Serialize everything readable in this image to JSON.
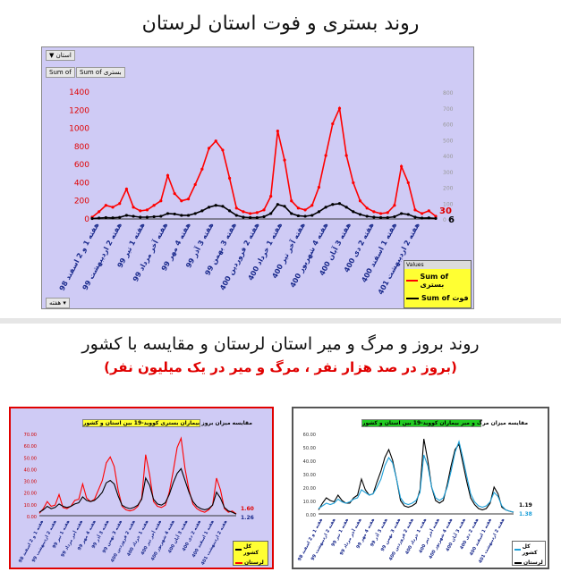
{
  "titles": {
    "main": "روند بستری و فوت استان لرستان",
    "section2": "روند بروز و مرگ و میر استان لرستان و مقایسه با کشور",
    "section2_sub": "(بروز در صد هزار نفر ، مرگ و میر در یک میلیون نفر)"
  },
  "panel1": {
    "filter_label": "استان",
    "buttons": [
      "Sum of",
      "Sum of بستری"
    ],
    "legend_title": "Values",
    "legend_items": [
      "Sum of بستری",
      "Sum of فوت"
    ],
    "bottom_control": "هفته",
    "last_labels": [
      "30",
      "6"
    ]
  },
  "panel2": {
    "title": "مقایسه میزان بروز بیماران بستری کووید-19 بین استان و کشور",
    "legend_items": [
      "کل کشور",
      "لرستان"
    ],
    "last_labels": [
      "1.60",
      "1.26"
    ]
  },
  "panel3": {
    "title": "مقایسه میزان مرگ و میر بیماران کووید-19 بین استان و کشور",
    "legend_items": [
      "کل کشور",
      "لرستان"
    ],
    "last_labels": [
      "1.19",
      "1.38"
    ]
  },
  "chart_data": [
    {
      "type": "line",
      "x_tick_labels": [
        "هفته 1 و 2 اسفند 98",
        "هفته 2 اردیبهشت 99",
        "هفته 1 تیر 99",
        "هفته آخر مرداد 99",
        "هفته 4 مهر 99",
        "هفته 3 آذر 99",
        "هفته 3 بهمن 99",
        "هفته 2 فروردین 400",
        "هفته 1 خرداد 400",
        "هفته آخر تیر 400",
        "هفته 4 شهریور 400",
        "هفته 3 آبان 400",
        "هفته 2 دی 400",
        "هفته 1 اسفند 400",
        "هفته 2 اردیبهشت 401"
      ],
      "ylim": [
        0,
        1400
      ],
      "y2lim": [
        0,
        800
      ],
      "y_ticks": [
        0,
        200,
        400,
        600,
        800,
        1000,
        1200,
        1400
      ],
      "y2_ticks": [
        0,
        100,
        200,
        300,
        400,
        500,
        600,
        700,
        800
      ],
      "series": [
        {
          "name": "Sum of بستری",
          "color": "#ff0000",
          "values": [
            20,
            80,
            150,
            130,
            170,
            330,
            130,
            90,
            100,
            150,
            200,
            480,
            280,
            200,
            220,
            380,
            550,
            780,
            860,
            760,
            450,
            120,
            80,
            60,
            70,
            100,
            250,
            970,
            650,
            200,
            120,
            100,
            150,
            350,
            700,
            1050,
            1220,
            700,
            400,
            200,
            120,
            80,
            60,
            70,
            150,
            580,
            400,
            100,
            60,
            90,
            30
          ]
        },
        {
          "name": "Sum of فوت",
          "color": "#000000",
          "values": [
            5,
            10,
            15,
            12,
            18,
            40,
            30,
            20,
            20,
            25,
            30,
            60,
            55,
            40,
            40,
            60,
            90,
            130,
            150,
            140,
            90,
            40,
            20,
            15,
            15,
            25,
            60,
            160,
            140,
            60,
            35,
            30,
            40,
            80,
            130,
            160,
            170,
            130,
            80,
            50,
            30,
            20,
            15,
            15,
            25,
            60,
            50,
            20,
            10,
            12,
            6
          ]
        }
      ]
    },
    {
      "type": "line",
      "x_tick_labels": [
        "هفته 1 و 2 اسفند 98",
        "هفته 2 اردیبهشت 99",
        "هفته 1 تیر 99",
        "هفته آخر مرداد 99",
        "هفته 4 مهر 99",
        "هفته 3 آذر 99",
        "هفته 3 بهمن 99",
        "هفته 2 فروردین 400",
        "هفته 1 خرداد 400",
        "هفته آخر تیر 400",
        "هفته 4 شهریور 400",
        "هفته 3 آبان 400",
        "هفته 2 دی 400",
        "هفته 1 اسفند 400",
        "هفته 2 اردیبهشت 401"
      ],
      "ylim": [
        0,
        70
      ],
      "y_ticks": [
        "0.00",
        "10.00",
        "20.00",
        "30.00",
        "40.00",
        "50.00",
        "60.00",
        "70.00"
      ],
      "series": [
        {
          "name": "لرستان",
          "color": "#ff0000",
          "values": [
            2,
            6,
            12,
            8,
            9,
            18,
            7,
            6,
            8,
            13,
            14,
            27,
            15,
            12,
            14,
            22,
            30,
            45,
            50,
            42,
            22,
            8,
            5,
            4,
            5,
            8,
            15,
            52,
            35,
            12,
            8,
            7,
            9,
            20,
            38,
            58,
            66,
            40,
            22,
            10,
            6,
            4,
            3,
            5,
            9,
            32,
            22,
            6,
            3,
            4,
            1.6
          ]
        },
        {
          "name": "کل کشور",
          "color": "#000000",
          "values": [
            3,
            5,
            8,
            6,
            7,
            10,
            8,
            7,
            8,
            10,
            11,
            16,
            13,
            12,
            13,
            16,
            20,
            28,
            30,
            27,
            17,
            9,
            7,
            6,
            7,
            9,
            14,
            32,
            26,
            14,
            10,
            9,
            11,
            18,
            28,
            36,
            40,
            30,
            20,
            12,
            8,
            6,
            5,
            6,
            9,
            20,
            15,
            7,
            4,
            3,
            1.26
          ]
        }
      ]
    },
    {
      "type": "line",
      "x_tick_labels": [
        "هفته 1 و 2 اسفند 98",
        "هفته 2 اردیبهشت 99",
        "هفته 1 تیر 99",
        "هفته آخر مرداد 99",
        "هفته 4 مهر 99",
        "هفته 3 آذر 99",
        "هفته 3 بهمن 99",
        "هفته 2 فروردین 400",
        "هفته 1 خرداد 400",
        "هفته آخر تیر 400",
        "هفته 4 شهریور 400",
        "هفته 3 آبان 400",
        "هفته 2 دی 400",
        "هفته 1 اسفند 400",
        "هفته 2 اردیبهشت 401"
      ],
      "ylim": [
        0,
        60
      ],
      "y_ticks": [
        "0.00",
        "10.00",
        "20.00",
        "30.00",
        "40.00",
        "50.00",
        "60.00"
      ],
      "series": [
        {
          "name": "لرستان",
          "color": "#000000",
          "values": [
            3,
            8,
            12,
            10,
            9,
            14,
            10,
            8,
            8,
            12,
            14,
            26,
            18,
            14,
            15,
            24,
            32,
            42,
            48,
            40,
            26,
            10,
            6,
            5,
            6,
            8,
            18,
            56,
            40,
            20,
            10,
            8,
            10,
            22,
            36,
            48,
            52,
            38,
            24,
            12,
            7,
            4,
            3,
            4,
            8,
            20,
            15,
            5,
            3,
            2,
            1.19
          ]
        },
        {
          "name": "کل کشور",
          "color": "#1ea0d8",
          "values": [
            4,
            6,
            8,
            7,
            8,
            11,
            9,
            8,
            9,
            11,
            12,
            18,
            16,
            14,
            15,
            20,
            26,
            36,
            42,
            38,
            26,
            12,
            8,
            7,
            8,
            10,
            16,
            44,
            36,
            20,
            12,
            10,
            12,
            20,
            32,
            46,
            54,
            42,
            28,
            15,
            9,
            6,
            5,
            6,
            9,
            16,
            13,
            6,
            3,
            2,
            1.38
          ]
        }
      ]
    }
  ]
}
